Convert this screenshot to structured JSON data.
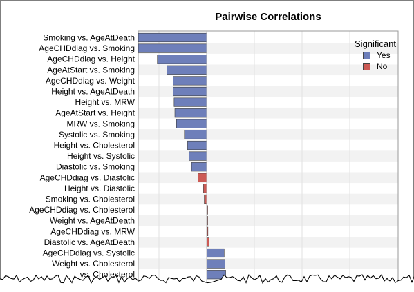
{
  "chart_data": {
    "type": "bar",
    "orientation": "horizontal",
    "title": "Pairwise Correlations",
    "xlabel": "",
    "ylabel": "",
    "xlim": [
      -0.45,
      1.0
    ],
    "grid": true,
    "legend_position": "top-right",
    "legend": {
      "title": "Significant",
      "entries": [
        {
          "label": "Yes",
          "color": "#6e7fba"
        },
        {
          "label": "No",
          "color": "#cc5a55"
        }
      ]
    },
    "categories": [
      "Smoking vs. AgeAtDeath",
      "AgeCHDdiag vs. Smoking",
      "AgeCHDdiag vs. Height",
      "AgeAtStart vs. Smoking",
      "AgeCHDdiag vs. Weight",
      "Height vs. AgeAtDeath",
      "Height vs. MRW",
      "AgeAtStart vs. Height",
      "MRW vs. Smoking",
      "Systolic vs. Smoking",
      "Height vs. Cholesterol",
      "Height vs. Systolic",
      "Diastolic vs. Smoking",
      "AgeCHDdiag vs. Diastolic",
      "Height vs. Diastolic",
      "Smoking vs. Cholesterol",
      "AgeCHDdiag vs. Cholesterol",
      "Weight vs. AgeAtDeath",
      "AgeCHDdiag vs. MRW",
      "Diastolic vs. AgeAtDeath",
      "AgeCHDdiag vs. Systolic",
      "Weight vs. Cholesterol",
      "vs. Cholesterol"
    ],
    "values": [
      -0.43,
      -0.43,
      -0.31,
      -0.25,
      -0.21,
      -0.21,
      -0.205,
      -0.2,
      -0.19,
      -0.14,
      -0.12,
      -0.11,
      -0.095,
      -0.055,
      -0.02,
      -0.015,
      0.005,
      0.005,
      0.008,
      0.015,
      0.11,
      0.115,
      0.12
    ],
    "significant": [
      "Yes",
      "Yes",
      "Yes",
      "Yes",
      "Yes",
      "Yes",
      "Yes",
      "Yes",
      "Yes",
      "Yes",
      "Yes",
      "Yes",
      "Yes",
      "No",
      "No",
      "No",
      "No",
      "No",
      "No",
      "No",
      "Yes",
      "Yes",
      "Yes"
    ]
  }
}
